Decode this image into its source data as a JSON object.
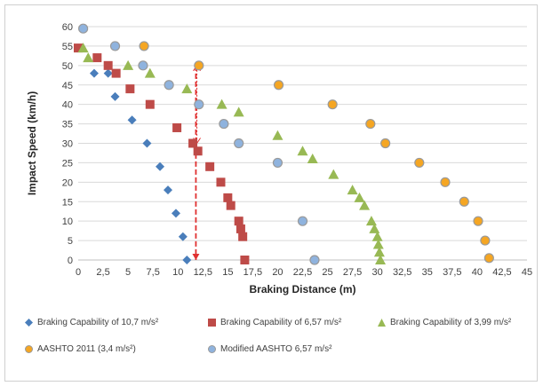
{
  "chart_data": {
    "type": "scatter",
    "title": "",
    "xlabel": "Braking Distance (m)",
    "ylabel": "Impact Speed (km/h)",
    "xlim": [
      0,
      45
    ],
    "ylim": [
      0,
      60
    ],
    "xticks": [
      "0",
      "2,5",
      "5",
      "7,5",
      "10",
      "12,5",
      "15",
      "17,5",
      "20",
      "22,5",
      "25",
      "27,5",
      "30",
      "32,5",
      "35",
      "37,5",
      "40",
      "42,5",
      "45"
    ],
    "yticks": [
      "0",
      "5",
      "10",
      "15",
      "20",
      "25",
      "30",
      "35",
      "40",
      "45",
      "50",
      "55",
      "60"
    ],
    "grid": "horizontal",
    "legend_position": "bottom",
    "series": [
      {
        "name": "Braking Capability of 10,7 m/s²",
        "marker": "diamond",
        "color": "#4a7ebb",
        "points": [
          [
            10.9,
            0
          ],
          [
            10.5,
            6
          ],
          [
            9.8,
            12
          ],
          [
            9.0,
            18
          ],
          [
            8.2,
            24
          ],
          [
            6.9,
            30
          ],
          [
            5.4,
            36
          ],
          [
            3.7,
            42
          ],
          [
            1.6,
            48
          ],
          [
            3.0,
            48
          ],
          [
            0,
            54.5
          ]
        ]
      },
      {
        "name": "Braking Capability of 6,57 m/s²",
        "marker": "square",
        "color": "#be4b48",
        "points": [
          [
            16.7,
            0
          ],
          [
            16.5,
            6
          ],
          [
            16.3,
            8
          ],
          [
            16.1,
            10
          ],
          [
            15.3,
            14
          ],
          [
            15.0,
            16
          ],
          [
            14.3,
            20
          ],
          [
            13.2,
            24
          ],
          [
            12.0,
            28
          ],
          [
            11.5,
            30
          ],
          [
            9.9,
            34
          ],
          [
            7.2,
            40
          ],
          [
            5.2,
            44
          ],
          [
            3.8,
            48
          ],
          [
            3.0,
            50
          ],
          [
            1.9,
            52
          ],
          [
            0,
            54.5
          ]
        ]
      },
      {
        "name": "Braking Capability of 3,99 m/s²",
        "marker": "triangle",
        "color": "#98b954",
        "points": [
          [
            30.3,
            0
          ],
          [
            30.2,
            2
          ],
          [
            30.1,
            4
          ],
          [
            30.0,
            6
          ],
          [
            29.7,
            8
          ],
          [
            29.4,
            10
          ],
          [
            28.7,
            14
          ],
          [
            28.2,
            16
          ],
          [
            27.5,
            18
          ],
          [
            25.6,
            22
          ],
          [
            23.5,
            26
          ],
          [
            22.5,
            28
          ],
          [
            20.0,
            32
          ],
          [
            16.1,
            38
          ],
          [
            14.4,
            40
          ],
          [
            10.9,
            44
          ],
          [
            7.2,
            48
          ],
          [
            5.0,
            50
          ],
          [
            1.0,
            52
          ],
          [
            0.5,
            54.5
          ]
        ]
      },
      {
        "name": "AASHTO 2011 (3,4 m/s²)",
        "marker": "circle",
        "color": "#f5a623",
        "stroke": "#9a9a9a",
        "points": [
          [
            41.2,
            0.5
          ],
          [
            40.8,
            5
          ],
          [
            40.1,
            10
          ],
          [
            38.7,
            15
          ],
          [
            36.8,
            20
          ],
          [
            34.2,
            25
          ],
          [
            30.8,
            30
          ],
          [
            29.3,
            35
          ],
          [
            25.5,
            40
          ],
          [
            20.1,
            45
          ],
          [
            12.1,
            50
          ],
          [
            6.6,
            55
          ]
        ]
      },
      {
        "name": "Modified AASHTO 6,57 m/s²",
        "marker": "circle",
        "color": "#8fb3de",
        "stroke": "#9a9a9a",
        "points": [
          [
            23.7,
            0
          ],
          [
            22.5,
            10
          ],
          [
            20.0,
            25
          ],
          [
            16.1,
            30
          ],
          [
            14.6,
            35
          ],
          [
            12.1,
            40
          ],
          [
            9.1,
            45
          ],
          [
            6.5,
            50
          ],
          [
            3.7,
            55
          ],
          [
            0.5,
            59.5
          ]
        ]
      }
    ],
    "annotations": [
      {
        "type": "dashed-vertical-line",
        "color": "#e03030",
        "x": 11.8,
        "y_from": 0,
        "y_to": 50
      },
      {
        "type": "dotted-double-arrow",
        "color": "#e03030",
        "x": 11.9,
        "y_from": 50,
        "y_to": 30
      }
    ]
  }
}
